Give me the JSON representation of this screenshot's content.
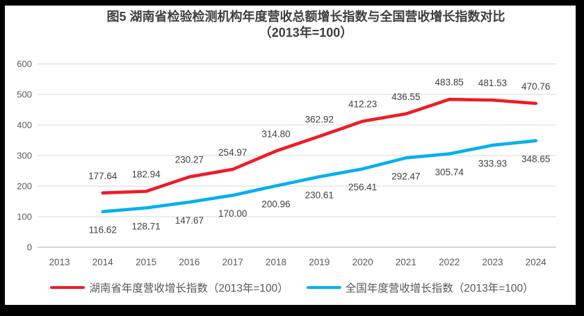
{
  "colors": {
    "frame": "#000000",
    "panel": "#FFFFFF",
    "gridline": "#D9D9D9",
    "axis_line": "#C9C9C9",
    "axis_text": "#595959",
    "data_label_text": "#404040",
    "title_text": "#3F3F3F",
    "hunan_red": "#EE1C25",
    "national_blue": "#00B0F0"
  },
  "chart_data": {
    "type": "line",
    "title": "图5 湖南省检验检测机构年度营收总额增长指数与全国营收增长指数对比（2013年=100）",
    "title_line1": "图5 湖南省检验检测机构年度营收总额增长指数与全国营收增长指数对比",
    "title_line2": "（2013年=100）",
    "categories": [
      "2013",
      "2014",
      "2015",
      "2016",
      "2017",
      "2018",
      "2019",
      "2020",
      "2021",
      "2022",
      "2023",
      "2024"
    ],
    "y_ticks": [
      0,
      100,
      200,
      300,
      400,
      500,
      600
    ],
    "ylim": [
      0,
      600
    ],
    "grid": true,
    "legend_position": "bottom",
    "series": [
      {
        "key": "hunan",
        "name": "湖南省年度营收增长指数（2013年=100）",
        "color": "#EE1C25",
        "values": [
          null,
          177.64,
          182.94,
          230.27,
          254.97,
          314.8,
          362.92,
          412.23,
          436.55,
          483.85,
          481.53,
          470.76
        ],
        "data_labels": [
          "",
          "177.64",
          "182.94",
          "230.27",
          "254.97",
          "314.80",
          "362.92",
          "412.23",
          "436.55",
          "483.85",
          "481.53",
          "470.76"
        ],
        "label_position": "above"
      },
      {
        "key": "national",
        "name": "全国年度营收增长指数（2013年=100）",
        "color": "#00B0F0",
        "values": [
          null,
          116.62,
          128.71,
          147.67,
          170,
          200.96,
          230.61,
          256.41,
          292.47,
          305.74,
          333.93,
          348.65
        ],
        "data_labels": [
          "",
          "116.62",
          "128.71",
          "147.67",
          "170.00",
          "200.96",
          "230.61",
          "256.41",
          "292.47",
          "305.74",
          "333.93",
          "348.65"
        ],
        "label_position": "below"
      }
    ]
  }
}
